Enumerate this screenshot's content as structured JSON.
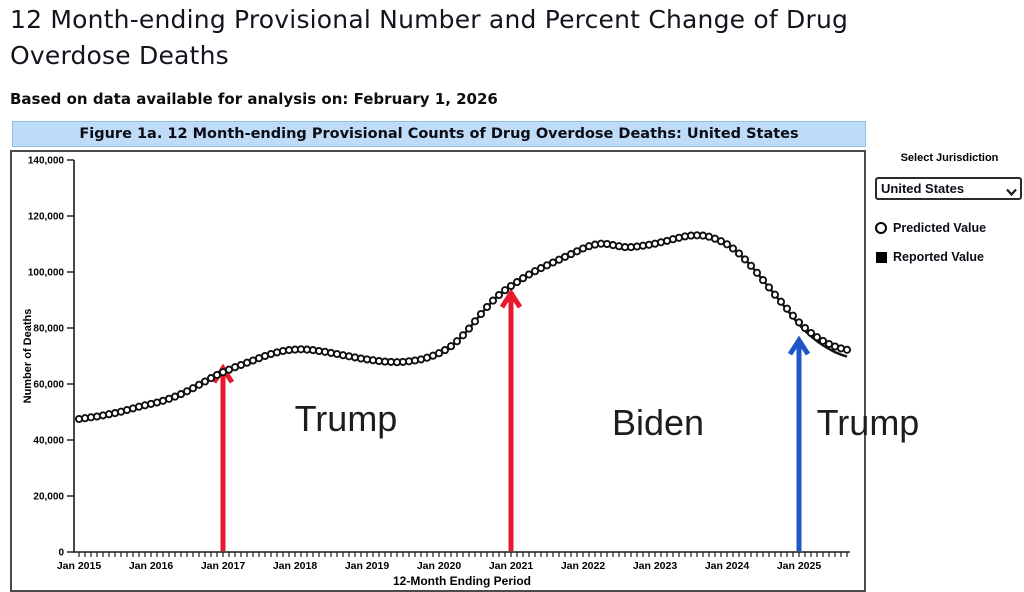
{
  "page": {
    "title": "12 Month-ending Provisional Number and Percent Change of Drug Overdose Deaths",
    "subtitle": "Based on data available for analysis on: February 1, 2026"
  },
  "controls": {
    "jurisdiction_label": "Select Jurisdiction",
    "jurisdiction_value": "United States",
    "legend": [
      {
        "marker": "open-circle",
        "label": "Predicted Value"
      },
      {
        "marker": "filled-square",
        "label": "Reported Value"
      }
    ]
  },
  "colors": {
    "header_bg": "#bedcf7",
    "red_arrow": "#e8192e",
    "blue_arrow": "#1e55cb",
    "series_black": "#111111"
  },
  "chart_data": {
    "type": "line",
    "title": "Figure 1a. 12 Month-ending Provisional Counts of Drug Overdose Deaths: United States",
    "xlabel": "12-Month Ending Period",
    "ylabel": "Number of Deaths",
    "ylim": [
      0,
      140000
    ],
    "ytick_step": 20000,
    "x_tick_labels": [
      "Jan 2015",
      "Jan 2016",
      "Jan 2017",
      "Jan 2018",
      "Jan 2019",
      "Jan 2020",
      "Jan 2021",
      "Jan 2022",
      "Jan 2023",
      "Jan 2024",
      "Jan 2025"
    ],
    "x_start_month": "Jan 2015",
    "x_end_month": "Sep 2025",
    "grid": false,
    "legend_position": "right",
    "series": [
      {
        "name": "Predicted Value",
        "marker": "open-circle",
        "values": [
          47500,
          47800,
          48100,
          48400,
          48800,
          49200,
          49600,
          50100,
          50700,
          51300,
          51900,
          52400,
          52900,
          53400,
          54000,
          54700,
          55500,
          56400,
          57400,
          58500,
          59700,
          60900,
          62100,
          63200,
          64200,
          65100,
          66000,
          66800,
          67600,
          68400,
          69200,
          70000,
          70700,
          71300,
          71800,
          72100,
          72300,
          72400,
          72300,
          72100,
          71800,
          71500,
          71100,
          70700,
          70300,
          69900,
          69500,
          69100,
          68800,
          68500,
          68200,
          68000,
          67900,
          67800,
          67900,
          68100,
          68400,
          68800,
          69400,
          70100,
          71000,
          72100,
          73500,
          75300,
          77400,
          79800,
          82400,
          85000,
          87500,
          89800,
          91800,
          93500,
          95000,
          96400,
          97800,
          99100,
          100300,
          101400,
          102400,
          103400,
          104400,
          105400,
          106400,
          107400,
          108400,
          109200,
          109800,
          110100,
          110000,
          109600,
          109200,
          108900,
          108900,
          109100,
          109400,
          109700,
          110100,
          110600,
          111100,
          111700,
          112200,
          112700,
          113000,
          113100,
          113000,
          112600,
          111900,
          111000,
          109900,
          108400,
          106600,
          104500,
          102200,
          99700,
          97100,
          94500,
          91900,
          89400,
          86900,
          84400,
          82000,
          80000,
          78200,
          76700,
          75400,
          74300,
          73400,
          72700,
          72200
        ]
      },
      {
        "name": "Reported Value",
        "marker": "line",
        "values": [
          47500,
          47800,
          48100,
          48400,
          48800,
          49200,
          49600,
          50100,
          50700,
          51300,
          51900,
          52400,
          52900,
          53400,
          54000,
          54700,
          55500,
          56400,
          57400,
          58500,
          59700,
          60900,
          62100,
          63200,
          64200,
          65100,
          66000,
          66800,
          67600,
          68400,
          69200,
          70000,
          70700,
          71300,
          71800,
          72100,
          72300,
          72400,
          72300,
          72100,
          71800,
          71500,
          71100,
          70700,
          70300,
          69900,
          69500,
          69100,
          68800,
          68500,
          68200,
          68000,
          67900,
          67800,
          67900,
          68100,
          68400,
          68800,
          69400,
          70100,
          71000,
          72100,
          73500,
          75300,
          77400,
          79800,
          82400,
          85000,
          87500,
          89800,
          91800,
          93500,
          95000,
          96400,
          97800,
          99100,
          100300,
          101400,
          102400,
          103400,
          104400,
          105400,
          106400,
          107400,
          108400,
          109200,
          109800,
          110100,
          110000,
          109600,
          109200,
          108900,
          108900,
          109100,
          109400,
          109700,
          110100,
          110600,
          111100,
          111700,
          112200,
          112700,
          113000,
          113100,
          113000,
          112600,
          111900,
          111000,
          109900,
          108400,
          106600,
          104500,
          102200,
          99700,
          97100,
          94500,
          91800,
          89200,
          86500,
          83800,
          81200,
          79000,
          77000,
          75300,
          73800,
          72500,
          71400,
          70500,
          69800
        ]
      }
    ],
    "arrows": [
      {
        "at": "Jan 2017",
        "month_index": 24,
        "tip_value": 66000,
        "color": "#e8192e"
      },
      {
        "at": "Jan 2021",
        "month_index": 72,
        "tip_value": 92800,
        "color": "#e8192e"
      },
      {
        "at": "Jan 2025",
        "month_index": 120,
        "tip_value": 76000,
        "color": "#1e55cb"
      }
    ],
    "annotations": [
      {
        "text": "Trump",
        "x_month": 44.5,
        "y_value": 47500
      },
      {
        "text": "Biden",
        "x_month": 96.5,
        "y_value": 46200
      },
      {
        "text": "Trump",
        "x_month": 131.5,
        "y_value": 46200
      }
    ]
  }
}
